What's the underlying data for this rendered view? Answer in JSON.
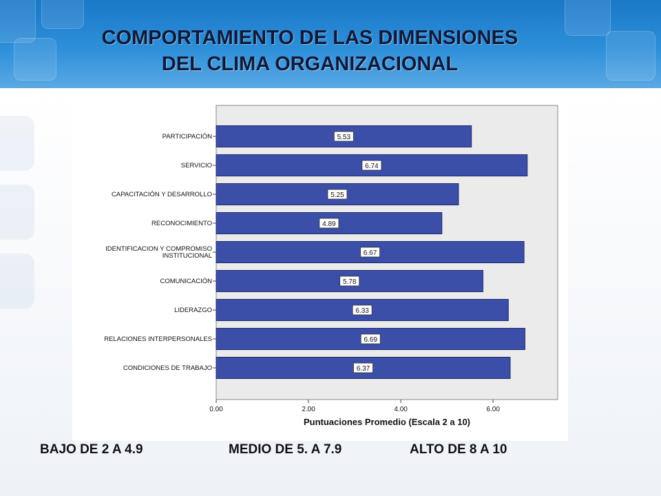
{
  "title": {
    "line1": "COMPORTAMIENTO DE LAS DIMENSIONES",
    "line2": "DEL CLIMA ORGANIZACIONAL"
  },
  "legend": {
    "bajo": "BAJO DE 2 A  4.9",
    "medio": "MEDIO DE 5. A 7.9",
    "alto": "ALTO DE 8 A 10"
  },
  "colors": {
    "bar": "#3c4fa8",
    "bar_stroke": "#1f2a6b",
    "plot_background": "#ebebeb",
    "header": "#1f7fce"
  },
  "chart_data": {
    "type": "bar",
    "orientation": "horizontal",
    "categories": [
      "PARTICIPACIÓN",
      "SERVICIO",
      "CAPACITACIÓN Y DESARROLLO",
      "RECONOCIMIENTO",
      "IDENTIFICACION Y COMPROMISO INSTITUCIONAL",
      "COMUNICACIÓN",
      "LIDERAZGO",
      "RELACIONES INTERPERSONALES",
      "CONDICIONES DE TRABAJO"
    ],
    "category_label_lines": [
      [
        "PARTICIPACIÓN"
      ],
      [
        "SERVICIO"
      ],
      [
        "CAPACITACIÓN Y DESARROLLO"
      ],
      [
        "RECONOCIMIENTO"
      ],
      [
        "IDENTIFICACION Y COMPROMISO",
        "INSTITUCIONAL"
      ],
      [
        "COMUNICACIÓN"
      ],
      [
        "LIDERAZGO"
      ],
      [
        "RELACIONES INTERPERSONALES"
      ],
      [
        "CONDICIONES DE TRABAJO"
      ]
    ],
    "values": [
      5.53,
      6.74,
      5.25,
      4.89,
      6.67,
      5.78,
      6.33,
      6.69,
      6.37
    ],
    "value_labels": [
      "5.53",
      "6.74",
      "5.25",
      "4.89",
      "6.67",
      "5.78",
      "6.33",
      "6.69",
      "6.37"
    ],
    "x_ticks": [
      0,
      2,
      4,
      6
    ],
    "x_tick_labels": [
      "0.00",
      "2.00",
      "4.00",
      "6.00"
    ],
    "xlim": [
      0,
      7.4
    ],
    "xlabel": "Puntuaciones Promedio (Escala 2 a 10)",
    "ylabel": "",
    "grid": false,
    "legend": "none"
  }
}
